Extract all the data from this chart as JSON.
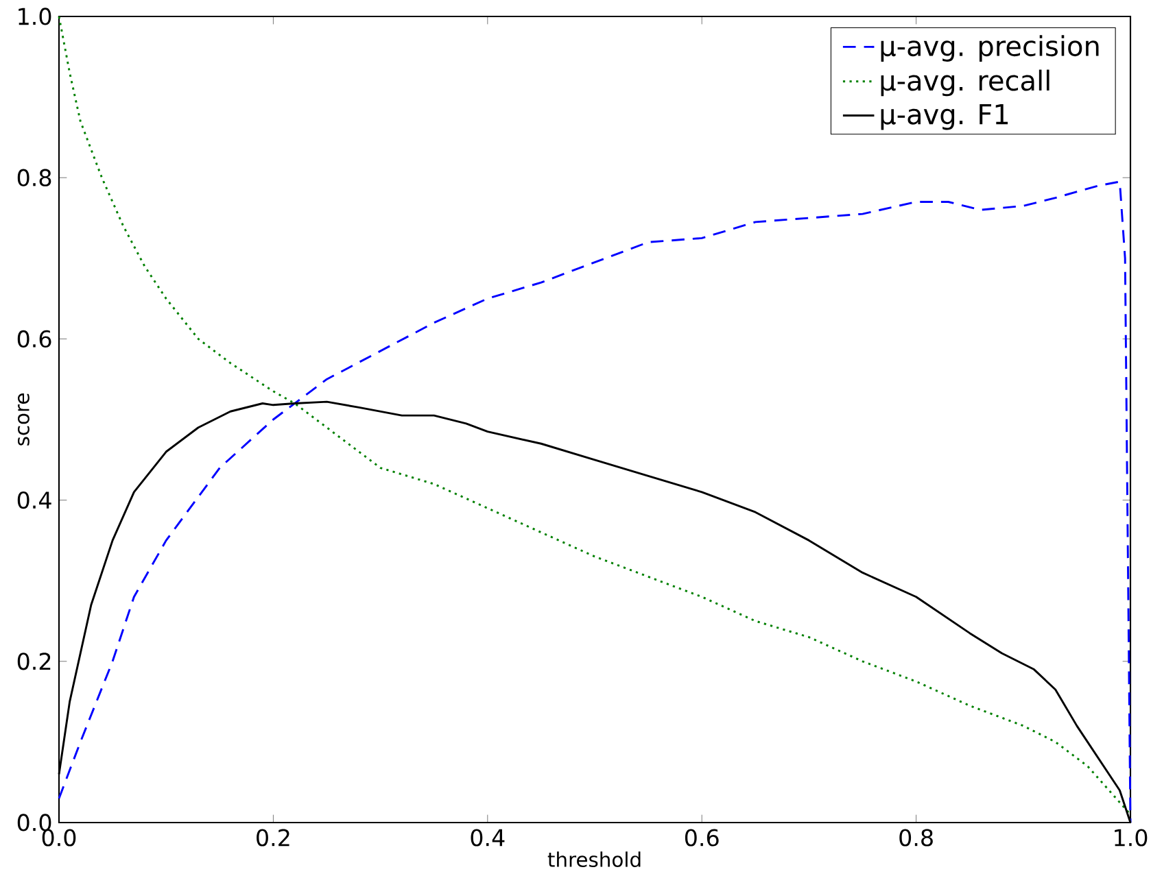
{
  "chart_data": {
    "type": "line",
    "xlabel": "threshold",
    "ylabel": "score",
    "xlim": [
      0,
      1
    ],
    "ylim": [
      0,
      1
    ],
    "xticks": [
      {
        "value": 0,
        "label": "0.0"
      },
      0.2,
      0.4,
      0.6,
      0.8,
      {
        "value": 1,
        "label": "1.0"
      }
    ],
    "yticks": [
      {
        "value": 0,
        "label": "0.0"
      },
      0.2,
      0.4,
      0.6,
      0.8,
      {
        "value": 1,
        "label": "1.0"
      }
    ],
    "grid": false,
    "legend": "top right",
    "marker": "none",
    "series": [
      {
        "name": "μ-avg. precision",
        "color": "#0000ff",
        "line_style": "dashed",
        "x": [
          0,
          0.02,
          0.05,
          0.07,
          0.1,
          0.15,
          0.2,
          0.25,
          0.3,
          0.35,
          0.4,
          0.45,
          0.5,
          0.55,
          0.6,
          0.65,
          0.7,
          0.75,
          0.8,
          0.83,
          0.86,
          0.9,
          0.93,
          0.97,
          0.99,
          0.995,
          1.0
        ],
        "values": [
          0.03,
          0.1,
          0.2,
          0.28,
          0.35,
          0.44,
          0.5,
          0.55,
          0.585,
          0.62,
          0.65,
          0.67,
          0.695,
          0.72,
          0.725,
          0.745,
          0.75,
          0.755,
          0.77,
          0.77,
          0.76,
          0.765,
          0.775,
          0.79,
          0.795,
          0.7,
          0.0
        ]
      },
      {
        "name": "μ-avg. recall",
        "color": "#008000",
        "line_style": "dotted",
        "x": [
          0,
          0.01,
          0.02,
          0.04,
          0.06,
          0.08,
          0.1,
          0.13,
          0.16,
          0.2,
          0.22,
          0.25,
          0.3,
          0.35,
          0.4,
          0.45,
          0.5,
          0.55,
          0.6,
          0.65,
          0.7,
          0.75,
          0.8,
          0.85,
          0.9,
          0.93,
          0.96,
          0.98,
          1.0
        ],
        "values": [
          1.0,
          0.93,
          0.87,
          0.8,
          0.74,
          0.69,
          0.65,
          0.6,
          0.57,
          0.535,
          0.52,
          0.49,
          0.44,
          0.42,
          0.39,
          0.36,
          0.33,
          0.305,
          0.28,
          0.25,
          0.23,
          0.2,
          0.175,
          0.145,
          0.12,
          0.1,
          0.07,
          0.04,
          0.01
        ]
      },
      {
        "name": "μ-avg. F1",
        "color": "#000000",
        "line_style": "solid",
        "x": [
          0,
          0.01,
          0.03,
          0.05,
          0.07,
          0.1,
          0.13,
          0.16,
          0.19,
          0.2,
          0.22,
          0.25,
          0.28,
          0.32,
          0.35,
          0.38,
          0.4,
          0.45,
          0.5,
          0.55,
          0.6,
          0.65,
          0.7,
          0.75,
          0.8,
          0.85,
          0.88,
          0.91,
          0.93,
          0.95,
          0.97,
          0.99,
          1.0
        ],
        "values": [
          0.06,
          0.15,
          0.27,
          0.35,
          0.41,
          0.46,
          0.49,
          0.51,
          0.52,
          0.518,
          0.52,
          0.522,
          0.515,
          0.505,
          0.505,
          0.495,
          0.485,
          0.47,
          0.45,
          0.43,
          0.41,
          0.385,
          0.35,
          0.31,
          0.28,
          0.235,
          0.21,
          0.19,
          0.165,
          0.12,
          0.08,
          0.04,
          0.0
        ]
      }
    ]
  }
}
